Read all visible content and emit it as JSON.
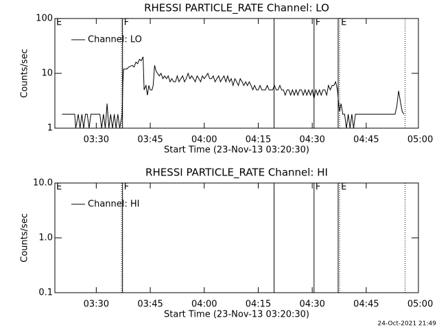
{
  "chart_data": [
    {
      "type": "line",
      "title": "RHESSI PARTICLE_RATE Channel: LO",
      "x_label": "Start Time (23-Nov-13 03:20:30)",
      "y_label": "Counts/sec",
      "log_y": true,
      "legend": "top-left",
      "xlim": [
        18.5,
        119.5
      ],
      "ylim": [
        1,
        100
      ],
      "xticks": [
        {
          "value": 30,
          "label": "03:30"
        },
        {
          "value": 45,
          "label": "03:45"
        },
        {
          "value": 60,
          "label": "04:00"
        },
        {
          "value": 75,
          "label": "04:15"
        },
        {
          "value": 90,
          "label": "04:30"
        },
        {
          "value": 105,
          "label": "04:45"
        },
        {
          "value": 120,
          "label": "05:00"
        }
      ],
      "yticks": [
        1,
        10,
        100
      ],
      "flags": [
        {
          "x": 18.5,
          "label": "E"
        },
        {
          "x": 37.0,
          "style": "dotted"
        },
        {
          "x": 37.3,
          "style": "solid",
          "label": "F"
        },
        {
          "x": 79.4,
          "style": "solid"
        },
        {
          "x": 90.5,
          "style": "solid",
          "label": "F"
        },
        {
          "x": 97.2,
          "style": "solid"
        },
        {
          "x": 97.6,
          "style": "dotted",
          "label": "E"
        },
        {
          "x": 115.8,
          "style": "dotted"
        }
      ],
      "x": [
        20.5,
        21,
        22,
        23,
        24,
        24.3,
        25,
        25.5,
        26,
        26.5,
        27,
        27.5,
        28,
        28.5,
        29,
        29.5,
        30,
        30.5,
        31,
        31.5,
        32,
        32.5,
        33,
        33.5,
        34,
        34.5,
        35,
        35.5,
        36,
        36.5,
        37.2,
        37.4,
        37.6,
        38.5,
        39,
        40,
        40.5,
        41,
        41.5,
        42,
        42.5,
        43,
        43.3,
        43.8,
        44.2,
        44.6,
        45,
        45.5,
        45.8,
        46.2,
        46.6,
        47,
        47.5,
        48,
        48.5,
        49,
        49.5,
        50,
        50.5,
        51,
        51.5,
        52,
        52.5,
        53,
        53.5,
        54,
        54.5,
        55,
        55.5,
        56,
        56.5,
        57,
        57.5,
        58,
        58.5,
        59,
        59.5,
        60,
        61,
        61.5,
        62,
        62.5,
        63,
        63.5,
        64,
        64.5,
        65,
        65.5,
        66,
        66.5,
        67,
        67.5,
        68,
        68.5,
        69,
        69.5,
        70,
        70.5,
        71,
        71.5,
        72,
        72.5,
        73,
        73.5,
        74,
        74.5,
        75,
        75.5,
        76,
        76.5,
        77,
        77.5,
        78,
        78.5,
        79,
        79.5,
        80,
        80.5,
        81,
        81.5,
        82,
        82.5,
        83,
        83.5,
        84,
        84.5,
        85,
        85.5,
        86,
        86.5,
        87,
        87.5,
        88,
        88.5,
        89,
        89.5,
        90,
        90.5,
        91,
        91.5,
        92,
        92.5,
        93,
        93.5,
        94,
        94.5,
        95,
        95.5,
        96,
        96.5,
        97,
        97.3,
        97.6,
        98,
        98.5,
        99,
        99.5,
        100,
        100.5,
        101,
        101.5,
        102,
        103,
        104,
        106,
        108,
        110,
        112,
        113,
        113.5,
        114,
        114.5,
        115,
        115.5
      ],
      "series": [
        {
          "name": "Channel: LO",
          "color": "#000000",
          "values": [
            1.8,
            1.8,
            1.8,
            1.8,
            1.8,
            1,
            1.8,
            1,
            1.8,
            1,
            1.8,
            1.8,
            1,
            1.8,
            1.8,
            1.8,
            1.8,
            1.8,
            1.8,
            1,
            1.8,
            1,
            2.8,
            1,
            1.8,
            1,
            1.8,
            1,
            1.8,
            1,
            1.8,
            7,
            12,
            12,
            13,
            14,
            13,
            16,
            15,
            18,
            17,
            20,
            5,
            6,
            4,
            6,
            5,
            5,
            6,
            14,
            11,
            10,
            9,
            10,
            8,
            9,
            8,
            9,
            7,
            8,
            7,
            7,
            9,
            7,
            8,
            9,
            7,
            8,
            10,
            8,
            9,
            8,
            7,
            9,
            8,
            7,
            9,
            8,
            10,
            8,
            8,
            9,
            7,
            8,
            9,
            7,
            8,
            9,
            7,
            9,
            7,
            8,
            6,
            8,
            7,
            6,
            8,
            7,
            6,
            7,
            6,
            7,
            6,
            5,
            6,
            5,
            5,
            6,
            5,
            5,
            5,
            6,
            5,
            5,
            5,
            6,
            5,
            5,
            6,
            5,
            5,
            4,
            5,
            5,
            4,
            5,
            4,
            5,
            4,
            5,
            5,
            4,
            5,
            4,
            5,
            4,
            5,
            3.5,
            5,
            4,
            5,
            4,
            5,
            5,
            4,
            6,
            5,
            6,
            6,
            7,
            5,
            3,
            2,
            2.8,
            1.8,
            1.8,
            1,
            1.8,
            1,
            1.8,
            1,
            1.8,
            1.8,
            1.8,
            1.8,
            1.8,
            1.8,
            1.8,
            1.8,
            2.5,
            4.8,
            3,
            2,
            1.8
          ]
        }
      ]
    },
    {
      "type": "line",
      "title": "RHESSI PARTICLE_RATE Channel: HI",
      "x_label": "Start Time (23-Nov-13 03:20:30)",
      "y_label": "Counts/sec",
      "log_y": true,
      "legend": "top-left",
      "xlim": [
        18.5,
        119.5
      ],
      "ylim": [
        0.1,
        10
      ],
      "xticks": [
        {
          "value": 30,
          "label": "03:30"
        },
        {
          "value": 45,
          "label": "03:45"
        },
        {
          "value": 60,
          "label": "04:00"
        },
        {
          "value": 75,
          "label": "04:15"
        },
        {
          "value": 90,
          "label": "04:30"
        },
        {
          "value": 105,
          "label": "04:45"
        },
        {
          "value": 120,
          "label": "05:00"
        }
      ],
      "yticks": [
        0.1,
        {
          "value": 1,
          "label": "1.0"
        },
        {
          "value": 10,
          "label": "10.0"
        }
      ],
      "flags": [
        {
          "x": 18.5,
          "label": "E"
        },
        {
          "x": 37.0,
          "style": "dotted"
        },
        {
          "x": 37.3,
          "style": "solid",
          "label": "F"
        },
        {
          "x": 79.4,
          "style": "solid"
        },
        {
          "x": 90.5,
          "style": "solid",
          "label": "F"
        },
        {
          "x": 97.2,
          "style": "solid"
        },
        {
          "x": 97.6,
          "style": "dotted",
          "label": "E"
        },
        {
          "x": 115.8,
          "style": "dotted"
        }
      ],
      "x": [],
      "series": [
        {
          "name": "Channel: HI",
          "color": "#000000",
          "values": []
        }
      ]
    }
  ],
  "footer": "24-Oct-2021 21:49"
}
